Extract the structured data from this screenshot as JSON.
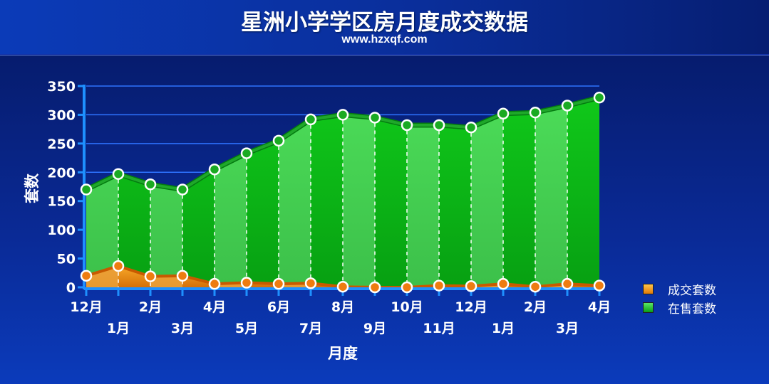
{
  "header": {
    "title": "星洲小学学区房月度成交数据",
    "subtitle": "www.hzxqf.com"
  },
  "chart_data": {
    "type": "area",
    "ylabel": "套数",
    "xlabel": "月度",
    "ylim": [
      0,
      350
    ],
    "yticks": [
      0,
      50,
      100,
      150,
      200,
      250,
      300,
      350
    ],
    "categories": [
      "12月",
      "1月",
      "2月",
      "3月",
      "4月",
      "5月",
      "6月",
      "7月",
      "8月",
      "9月",
      "10月",
      "11月",
      "12月",
      "1月",
      "2月",
      "3月",
      "4月"
    ],
    "series": [
      {
        "name": "成交套数",
        "color": "#f08c10",
        "values": [
          20,
          37,
          19,
          20,
          6,
          8,
          6,
          7,
          1,
          0,
          0,
          3,
          2,
          6,
          1,
          6,
          3
        ]
      },
      {
        "name": "在售套数",
        "color": "#0fb81a",
        "values": [
          170,
          197,
          179,
          170,
          205,
          233,
          255,
          292,
          300,
          295,
          282,
          282,
          278,
          302,
          304,
          316,
          330
        ]
      }
    ],
    "grid": true,
    "legend": "right"
  }
}
